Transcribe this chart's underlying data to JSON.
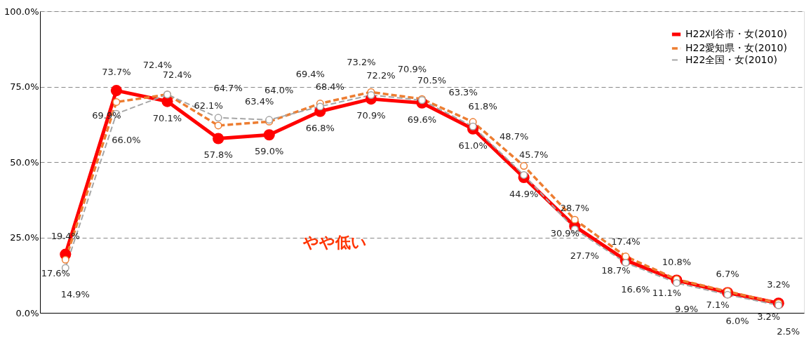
{
  "chart_data": {
    "type": "line",
    "categories": [
      null,
      null,
      null,
      null,
      null,
      null,
      null,
      null,
      null,
      null,
      null,
      null,
      null,
      null,
      null
    ],
    "series": [
      {
        "name": "H22刈谷市・女(2010)",
        "color": "#ff0000",
        "line_style": "solid",
        "values": [
          19.4,
          73.7,
          70.1,
          57.8,
          59.0,
          66.8,
          70.9,
          69.6,
          61.0,
          44.9,
          28.7,
          17.4,
          10.8,
          6.7,
          3.2
        ],
        "value_labels": [
          "19.4%",
          "73.7%",
          "70.1%",
          "57.8%",
          "59.0%",
          "66.8%",
          "70.9%",
          "69.6%",
          "61.0%",
          "44.9%",
          "28.7%",
          "17.4%",
          "10.8%",
          "6.7%",
          "3.2%"
        ]
      },
      {
        "name": "H22愛知県・女(2010)",
        "color": "#ed7d31",
        "line_style": "dashed",
        "values": [
          17.6,
          69.9,
          72.4,
          62.1,
          63.4,
          69.4,
          73.2,
          70.9,
          63.3,
          48.7,
          30.9,
          18.7,
          11.1,
          7.1,
          3.2
        ],
        "value_labels": [
          "17.6%",
          "69.9%",
          "72.4%",
          "62.1%",
          "63.4%",
          "69.4%",
          "73.2%",
          "70.9%",
          "63.3%",
          "48.7%",
          "30.9%",
          "18.7%",
          "11.1%",
          "7.1%",
          "3.2%"
        ]
      },
      {
        "name": "H22全国・女(2010)",
        "color": "#a6a6a6",
        "line_style": "dashed",
        "values": [
          14.9,
          66.0,
          72.4,
          64.7,
          64.0,
          68.4,
          72.2,
          70.5,
          61.8,
          45.7,
          27.7,
          16.6,
          9.9,
          6.0,
          2.5
        ],
        "value_labels": [
          "14.9%",
          "66.0%",
          "72.4%",
          "64.7%",
          "64.0%",
          "68.4%",
          "72.2%",
          "70.5%",
          "61.8%",
          "45.7%",
          "27.7%",
          "16.6%",
          "9.9%",
          "6.0%",
          "2.5%"
        ]
      }
    ],
    "ylim": [
      0,
      100
    ],
    "yticks": [
      {
        "value": 0,
        "label": "0.0%"
      },
      {
        "value": 25,
        "label": "25.0%"
      },
      {
        "value": 50,
        "label": "50.0%"
      },
      {
        "value": 75,
        "label": "75.0%"
      },
      {
        "value": 100,
        "label": "100.0%"
      }
    ],
    "grid": "y",
    "legend": "top right",
    "marker": "circle",
    "tick_labels": "y",
    "annotations": [
      "やや低い"
    ]
  }
}
